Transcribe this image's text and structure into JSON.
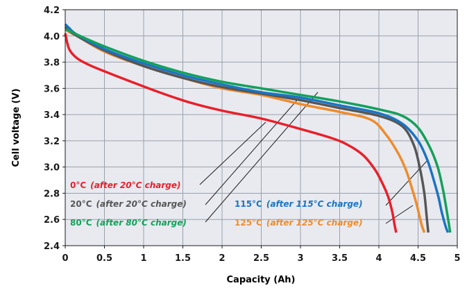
{
  "chart_data": {
    "type": "line",
    "xlabel": "Capacity (Ah)",
    "ylabel": "Cell voltage (V)",
    "xlim": [
      0,
      5
    ],
    "ylim": [
      2.4,
      4.2
    ],
    "xticks": [
      "0",
      "0.5",
      "1",
      "1.5",
      "2",
      "2.5",
      "3",
      "3.5",
      "4",
      "4.5",
      "5"
    ],
    "yticks": [
      "2.4",
      "2.6",
      "2.8",
      "3.0",
      "3.2",
      "3.4",
      "3.6",
      "3.8",
      "4.0",
      "4.2"
    ],
    "grid": true,
    "plot_background": "#e8eaf0",
    "series": [
      {
        "name": "0°C",
        "condition": "(after 20°C charge)",
        "color": "#e8202a",
        "x": [
          0,
          0.05,
          0.15,
          0.3,
          0.5,
          0.8,
          1.2,
          1.6,
          2.0,
          2.5,
          3.0,
          3.4,
          3.6,
          3.8,
          3.95,
          4.05,
          4.12,
          4.17,
          4.2,
          4.22
        ],
        "y": [
          4.02,
          3.9,
          3.83,
          3.78,
          3.73,
          3.66,
          3.57,
          3.49,
          3.43,
          3.37,
          3.29,
          3.22,
          3.17,
          3.09,
          2.98,
          2.87,
          2.77,
          2.66,
          2.56,
          2.5
        ]
      },
      {
        "name": "20°C",
        "condition": "(after 20°C charge)",
        "color": "#565656",
        "x": [
          0,
          0.05,
          0.15,
          0.5,
          1.0,
          1.5,
          2.0,
          2.5,
          3.0,
          3.5,
          4.0,
          4.3,
          4.45,
          4.53,
          4.58,
          4.61,
          4.63
        ],
        "y": [
          4.07,
          4.04,
          4.0,
          3.89,
          3.77,
          3.68,
          3.61,
          3.56,
          3.51,
          3.45,
          3.39,
          3.31,
          3.16,
          2.97,
          2.8,
          2.62,
          2.5
        ]
      },
      {
        "name": "80°C",
        "condition": "(after 80°C charge)",
        "color": "#14a05a",
        "x": [
          0,
          0.05,
          0.15,
          0.5,
          1.0,
          1.5,
          2.0,
          2.5,
          3.0,
          3.5,
          4.0,
          4.3,
          4.5,
          4.65,
          4.75,
          4.82,
          4.87,
          4.91
        ],
        "y": [
          4.05,
          4.04,
          4.01,
          3.92,
          3.81,
          3.72,
          3.65,
          3.6,
          3.55,
          3.5,
          3.44,
          3.39,
          3.3,
          3.15,
          3.0,
          2.82,
          2.65,
          2.5
        ]
      },
      {
        "name": "115°C",
        "condition": "(after 115°C charge)",
        "color": "#1a74c4",
        "x": [
          0,
          0.05,
          0.15,
          0.5,
          1.0,
          1.5,
          2.0,
          2.5,
          3.0,
          3.5,
          4.0,
          4.3,
          4.5,
          4.62,
          4.7,
          4.76,
          4.8,
          4.85,
          4.88
        ],
        "y": [
          4.09,
          4.06,
          4.01,
          3.9,
          3.79,
          3.7,
          3.63,
          3.57,
          3.53,
          3.47,
          3.41,
          3.33,
          3.2,
          3.05,
          2.9,
          2.77,
          2.66,
          2.55,
          2.5
        ]
      },
      {
        "name": "125°C",
        "condition": "(after 125°C charge)",
        "color": "#ef8b2c",
        "x": [
          0,
          0.05,
          0.15,
          0.5,
          1.0,
          1.5,
          2.0,
          2.5,
          3.0,
          3.5,
          3.9,
          4.1,
          4.25,
          4.35,
          4.42,
          4.48,
          4.52,
          4.55,
          4.58
        ],
        "y": [
          4.05,
          4.03,
          4.0,
          3.88,
          3.77,
          3.68,
          3.6,
          3.55,
          3.48,
          3.42,
          3.36,
          3.24,
          3.1,
          2.97,
          2.84,
          2.72,
          2.62,
          2.55,
          2.5
        ]
      }
    ]
  }
}
